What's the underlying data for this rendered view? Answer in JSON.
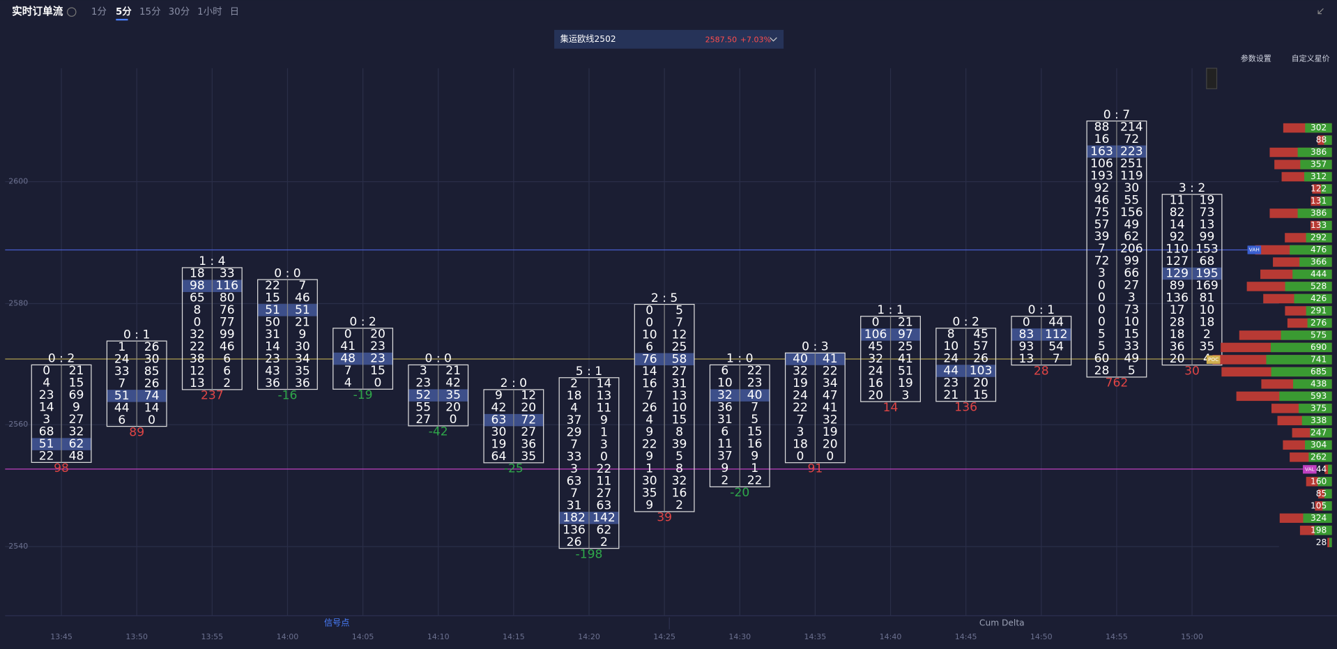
{
  "header": {
    "title": "实时订单流",
    "intervals": [
      "1分",
      "5分",
      "15分",
      "30分",
      "1小时",
      "日"
    ]
  },
  "symbol": {
    "name": "集运欧线2502",
    "price": "2587.50",
    "change": "+7.03%"
  },
  "links": [
    "参数设置",
    "自定义星价"
  ],
  "price_axis": [
    2600,
    2580,
    2560,
    2540
  ],
  "time_axis": [
    "13:45",
    "13:50",
    "13:55",
    "14:00",
    "14:05",
    "14:10",
    "14:15",
    "14:20",
    "14:25",
    "14:30",
    "14:35",
    "14:40",
    "14:45",
    "14:50",
    "14:55",
    "15:00"
  ],
  "candles": [
    {
      "ratio": "0 : 2",
      "rows": [
        [
          0,
          21
        ],
        [
          4,
          15
        ],
        [
          23,
          69
        ],
        [
          14,
          9
        ],
        [
          3,
          27
        ],
        [
          68,
          32
        ],
        [
          51,
          62
        ],
        [
          22,
          48
        ]
      ],
      "delta": 98
    },
    {
      "ratio": "0 : 1",
      "rows": [
        [
          1,
          26
        ],
        [
          24,
          30
        ],
        [
          33,
          85
        ],
        [
          7,
          26
        ],
        [
          51,
          74
        ],
        [
          44,
          14
        ],
        [
          6,
          0
        ]
      ],
      "delta": 89
    },
    {
      "ratio": "1 : 4",
      "rows": [
        [
          18,
          33
        ],
        [
          98,
          116
        ],
        [
          65,
          80
        ],
        [
          8,
          76
        ],
        [
          0,
          77
        ],
        [
          32,
          99
        ],
        [
          22,
          46
        ],
        [
          38,
          6
        ],
        [
          12,
          6
        ],
        [
          13,
          2
        ]
      ],
      "delta": 237
    },
    {
      "ratio": "0 : 0",
      "rows": [
        [
          22,
          7
        ],
        [
          15,
          46
        ],
        [
          51,
          51
        ],
        [
          50,
          21
        ],
        [
          31,
          9
        ],
        [
          14,
          30
        ],
        [
          23,
          34
        ],
        [
          43,
          35
        ],
        [
          36,
          36
        ]
      ],
      "delta": -16
    },
    {
      "ratio": "0 : 2",
      "rows": [
        [
          0,
          20
        ],
        [
          41,
          23
        ],
        [
          48,
          23
        ],
        [
          7,
          15
        ],
        [
          4,
          0
        ]
      ],
      "delta": -19
    },
    {
      "ratio": "0 : 0",
      "rows": [
        [
          3,
          21
        ],
        [
          23,
          42
        ],
        [
          52,
          35
        ],
        [
          55,
          20
        ],
        [
          27,
          0
        ]
      ],
      "delta": -42
    },
    {
      "ratio": "2 : 0",
      "rows": [
        [
          9,
          12
        ],
        [
          42,
          20
        ],
        [
          63,
          72
        ],
        [
          30,
          27
        ],
        [
          19,
          36
        ],
        [
          64,
          35
        ]
      ],
      "delta": -25
    },
    {
      "ratio": "5 : 1",
      "rows": [
        [
          2,
          14
        ],
        [
          18,
          13
        ],
        [
          4,
          11
        ],
        [
          37,
          9
        ],
        [
          29,
          1
        ],
        [
          7,
          3
        ],
        [
          33,
          0
        ],
        [
          3,
          22
        ],
        [
          63,
          11
        ],
        [
          7,
          27
        ],
        [
          31,
          63
        ],
        [
          182,
          142
        ],
        [
          136,
          62
        ],
        [
          26,
          2
        ]
      ],
      "delta": -198
    },
    {
      "ratio": "2 : 5",
      "rows": [
        [
          0,
          5
        ],
        [
          0,
          7
        ],
        [
          10,
          12
        ],
        [
          6,
          25
        ],
        [
          76,
          58
        ],
        [
          14,
          27
        ],
        [
          16,
          31
        ],
        [
          7,
          13
        ],
        [
          26,
          10
        ],
        [
          4,
          15
        ],
        [
          9,
          8
        ],
        [
          22,
          39
        ],
        [
          9,
          5
        ],
        [
          1,
          8
        ],
        [
          30,
          32
        ],
        [
          35,
          16
        ],
        [
          9,
          2
        ]
      ],
      "delta": 39
    },
    {
      "ratio": "1 : 0",
      "rows": [
        [
          6,
          22
        ],
        [
          10,
          23
        ],
        [
          32,
          40
        ],
        [
          36,
          7
        ],
        [
          31,
          5
        ],
        [
          6,
          15
        ],
        [
          11,
          16
        ],
        [
          37,
          9
        ],
        [
          9,
          1
        ],
        [
          2,
          22
        ]
      ],
      "delta": -20
    },
    {
      "ratio": "0 : 3",
      "rows": [
        [
          40,
          41
        ],
        [
          32,
          22
        ],
        [
          19,
          34
        ],
        [
          24,
          47
        ],
        [
          22,
          41
        ],
        [
          7,
          32
        ],
        [
          3,
          19
        ],
        [
          18,
          20
        ],
        [
          0,
          0
        ]
      ],
      "delta": 91
    },
    {
      "ratio": "1 : 1",
      "rows": [
        [
          0,
          21
        ],
        [
          106,
          97
        ],
        [
          45,
          25
        ],
        [
          32,
          41
        ],
        [
          24,
          51
        ],
        [
          16,
          19
        ],
        [
          20,
          3
        ]
      ],
      "delta": 14
    },
    {
      "ratio": "0 : 2",
      "rows": [
        [
          8,
          45
        ],
        [
          10,
          57
        ],
        [
          24,
          26
        ],
        [
          44,
          103
        ],
        [
          23,
          20
        ],
        [
          21,
          15
        ]
      ],
      "delta": 136
    },
    {
      "ratio": "0 : 1",
      "rows": [
        [
          0,
          44
        ],
        [
          83,
          112
        ],
        [
          93,
          54
        ],
        [
          13,
          7
        ]
      ],
      "delta": 28
    },
    {
      "ratio": "0 : 7",
      "rows": [
        [
          88,
          214
        ],
        [
          16,
          72
        ],
        [
          163,
          223
        ],
        [
          106,
          251
        ],
        [
          193,
          119
        ],
        [
          92,
          30
        ],
        [
          46,
          55
        ],
        [
          75,
          156
        ],
        [
          57,
          49
        ],
        [
          39,
          62
        ],
        [
          7,
          206
        ],
        [
          72,
          99
        ],
        [
          3,
          66
        ],
        [
          0,
          27
        ],
        [
          0,
          3
        ],
        [
          0,
          73
        ],
        [
          0,
          10
        ],
        [
          5,
          15
        ],
        [
          5,
          33
        ],
        [
          60,
          49
        ],
        [
          28,
          5
        ]
      ],
      "delta": 762
    },
    {
      "ratio": "3 : 2",
      "rows": [
        [
          11,
          19
        ],
        [
          82,
          73
        ],
        [
          14,
          13
        ],
        [
          92,
          99
        ],
        [
          110,
          153
        ],
        [
          127,
          68
        ],
        [
          129,
          195
        ],
        [
          89,
          169
        ],
        [
          136,
          81
        ],
        [
          17,
          10
        ],
        [
          28,
          18
        ],
        [
          18,
          2
        ],
        [
          36,
          35
        ],
        [
          20,
          4
        ]
      ],
      "delta": 30
    }
  ],
  "profile": {
    "values": [
      302,
      88,
      386,
      357,
      312,
      122,
      131,
      386,
      133,
      292,
      476,
      366,
      444,
      528,
      426,
      291,
      276,
      575,
      690,
      741,
      685,
      438,
      593,
      375,
      338,
      247,
      304,
      262,
      44,
      160,
      85,
      105,
      324,
      198,
      28
    ],
    "tags": [
      "VAH",
      "POC",
      "VAL"
    ]
  },
  "panels": [
    "信号点",
    "Cum Delta"
  ]
}
